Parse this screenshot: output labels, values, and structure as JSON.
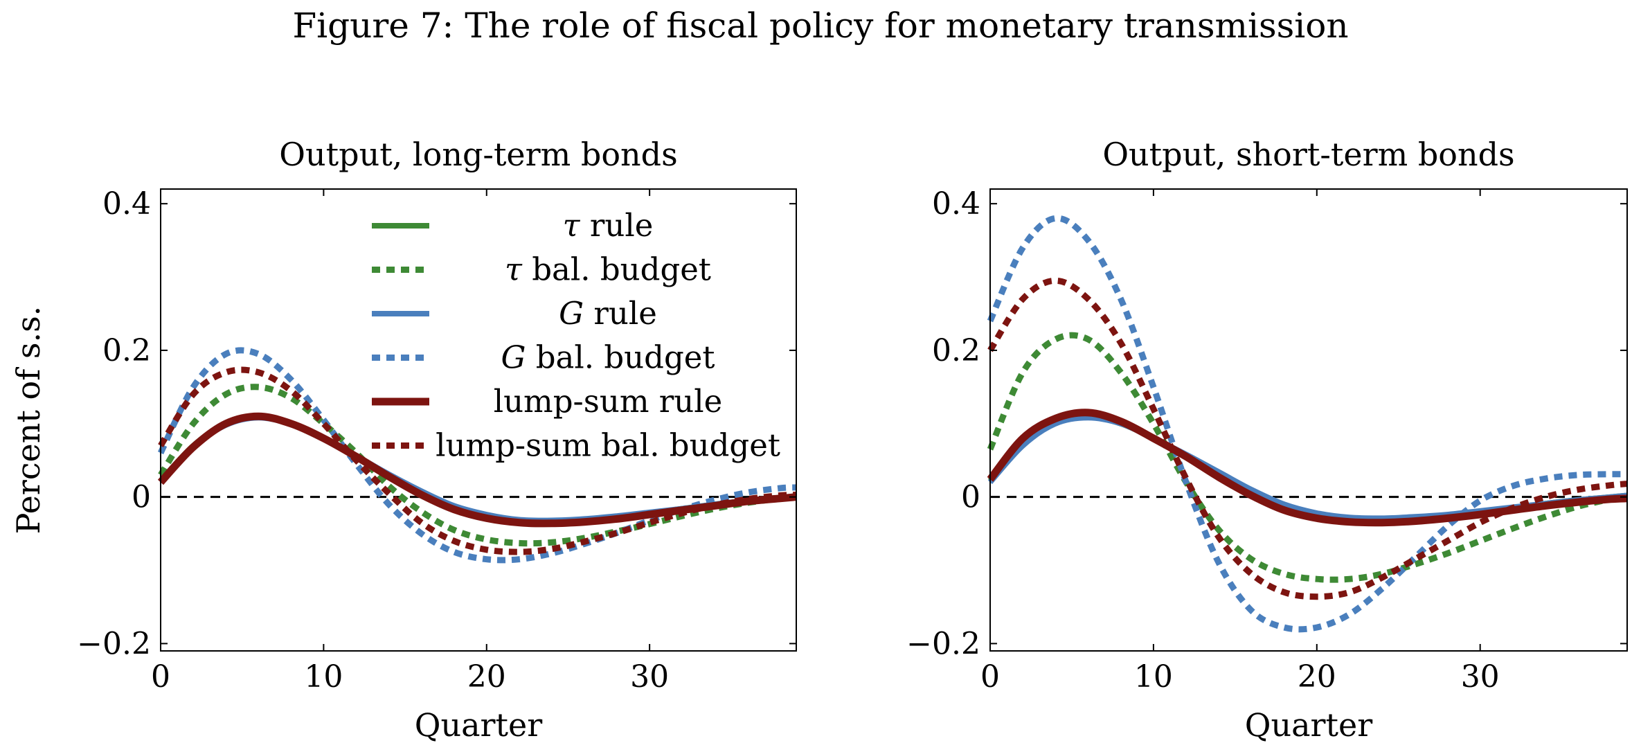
{
  "figure_title": "Figure 7: The role of fiscal policy for monetary transmission",
  "colors": {
    "green": "#3e8a35",
    "blue": "#4a7fbd",
    "red": "#7d1410",
    "zero_line": "#000000"
  },
  "chart_data": [
    {
      "type": "line",
      "title": "Output, long-term bonds",
      "xlabel": "Quarter",
      "ylabel": "Percent of s.s.",
      "xlim": [
        0,
        39
      ],
      "ylim": [
        -0.21,
        0.42
      ],
      "xticks": [
        0,
        10,
        20,
        30
      ],
      "xtick_labels": [
        "0",
        "10",
        "20",
        "30"
      ],
      "yticks": [
        -0.2,
        0,
        0.2,
        0.4
      ],
      "ytick_labels": [
        "−0.2",
        "0",
        "0.2",
        "0.4"
      ],
      "grid": false,
      "legend": "top-center",
      "series": [
        {
          "name": "τ rule",
          "color": "#3e8a35",
          "style": "solid",
          "x": [
            0,
            2,
            4,
            6,
            8,
            10,
            12,
            14,
            16,
            18,
            20,
            22,
            24,
            26,
            28,
            30,
            32,
            34,
            36,
            38,
            39
          ],
          "values": [
            0.022,
            0.07,
            0.1,
            0.11,
            0.1,
            0.08,
            0.055,
            0.03,
            0.005,
            -0.015,
            -0.026,
            -0.032,
            -0.033,
            -0.031,
            -0.027,
            -0.022,
            -0.016,
            -0.01,
            -0.005,
            -0.001,
            0.0
          ]
        },
        {
          "name": "τ bal. budget",
          "color": "#3e8a35",
          "style": "dashed",
          "x": [
            0,
            2,
            4,
            6,
            8,
            10,
            12,
            14,
            16,
            18,
            20,
            22,
            24,
            26,
            28,
            30,
            32,
            34,
            36,
            38,
            39
          ],
          "values": [
            0.03,
            0.1,
            0.14,
            0.15,
            0.135,
            0.1,
            0.06,
            0.015,
            -0.02,
            -0.045,
            -0.058,
            -0.063,
            -0.062,
            -0.056,
            -0.047,
            -0.037,
            -0.026,
            -0.016,
            -0.008,
            -0.002,
            0.0
          ]
        },
        {
          "name": "G rule",
          "color": "#4a7fbd",
          "style": "solid",
          "x": [
            0,
            2,
            4,
            6,
            8,
            10,
            12,
            14,
            16,
            18,
            20,
            22,
            24,
            26,
            28,
            30,
            32,
            34,
            36,
            38,
            39
          ],
          "values": [
            0.02,
            0.068,
            0.098,
            0.108,
            0.099,
            0.08,
            0.056,
            0.031,
            0.008,
            -0.012,
            -0.024,
            -0.031,
            -0.032,
            -0.03,
            -0.026,
            -0.021,
            -0.016,
            -0.01,
            -0.005,
            -0.001,
            0.001
          ]
        },
        {
          "name": "G bal. budget",
          "color": "#4a7fbd",
          "style": "dashed",
          "x": [
            0,
            2,
            4,
            6,
            8,
            10,
            12,
            14,
            16,
            18,
            20,
            22,
            24,
            26,
            28,
            30,
            32,
            34,
            36,
            38,
            39
          ],
          "values": [
            0.06,
            0.15,
            0.195,
            0.195,
            0.16,
            0.105,
            0.045,
            -0.01,
            -0.05,
            -0.075,
            -0.085,
            -0.085,
            -0.077,
            -0.064,
            -0.049,
            -0.032,
            -0.017,
            -0.004,
            0.006,
            0.012,
            0.013
          ]
        },
        {
          "name": "lump-sum rule",
          "color": "#7d1410",
          "style": "solid",
          "x": [
            0,
            2,
            4,
            6,
            8,
            10,
            12,
            14,
            16,
            18,
            20,
            22,
            24,
            26,
            28,
            30,
            32,
            34,
            36,
            38,
            39
          ],
          "values": [
            0.02,
            0.068,
            0.1,
            0.11,
            0.1,
            0.08,
            0.055,
            0.028,
            0.003,
            -0.017,
            -0.029,
            -0.035,
            -0.036,
            -0.034,
            -0.03,
            -0.024,
            -0.018,
            -0.012,
            -0.006,
            -0.002,
            0.0
          ]
        },
        {
          "name": "lump-sum bal. budget",
          "color": "#7d1410",
          "style": "dashed",
          "x": [
            0,
            2,
            4,
            6,
            8,
            10,
            12,
            14,
            16,
            18,
            20,
            22,
            24,
            26,
            28,
            30,
            32,
            34,
            36,
            38,
            39
          ],
          "values": [
            0.07,
            0.14,
            0.17,
            0.17,
            0.145,
            0.1,
            0.05,
            0.005,
            -0.035,
            -0.06,
            -0.072,
            -0.075,
            -0.071,
            -0.061,
            -0.049,
            -0.035,
            -0.022,
            -0.011,
            -0.003,
            0.002,
            0.003
          ]
        }
      ]
    },
    {
      "type": "line",
      "title": "Output, short-term bonds",
      "xlabel": "Quarter",
      "xlim": [
        0,
        39
      ],
      "ylim": [
        -0.21,
        0.42
      ],
      "xticks": [
        0,
        10,
        20,
        30
      ],
      "xtick_labels": [
        "0",
        "10",
        "20",
        "30"
      ],
      "yticks": [
        -0.2,
        0,
        0.2,
        0.4
      ],
      "ytick_labels": [
        "−0.2",
        "0",
        "0.2",
        "0.4"
      ],
      "grid": false,
      "series": [
        {
          "name": "τ rule",
          "color": "#3e8a35",
          "style": "solid",
          "x": [
            0,
            2,
            4,
            6,
            8,
            10,
            12,
            14,
            16,
            18,
            20,
            22,
            24,
            26,
            28,
            30,
            32,
            34,
            36,
            38,
            39
          ],
          "values": [
            0.022,
            0.075,
            0.103,
            0.11,
            0.1,
            0.08,
            0.055,
            0.03,
            0.006,
            -0.014,
            -0.025,
            -0.03,
            -0.031,
            -0.029,
            -0.025,
            -0.02,
            -0.015,
            -0.009,
            -0.004,
            0.0,
            0.002
          ]
        },
        {
          "name": "τ bal. budget",
          "color": "#3e8a35",
          "style": "dashed",
          "x": [
            0,
            2,
            4,
            6,
            8,
            10,
            12,
            14,
            16,
            18,
            20,
            22,
            24,
            26,
            28,
            30,
            32,
            34,
            36,
            38,
            39
          ],
          "values": [
            0.065,
            0.17,
            0.215,
            0.215,
            0.17,
            0.1,
            0.02,
            -0.045,
            -0.085,
            -0.105,
            -0.112,
            -0.112,
            -0.105,
            -0.092,
            -0.077,
            -0.06,
            -0.043,
            -0.027,
            -0.013,
            -0.003,
            0.0
          ]
        },
        {
          "name": "G rule",
          "color": "#4a7fbd",
          "style": "solid",
          "x": [
            0,
            2,
            4,
            6,
            8,
            10,
            12,
            14,
            16,
            18,
            20,
            22,
            24,
            26,
            28,
            30,
            32,
            34,
            36,
            38,
            39
          ],
          "values": [
            0.02,
            0.07,
            0.1,
            0.108,
            0.1,
            0.08,
            0.058,
            0.034,
            0.01,
            -0.01,
            -0.022,
            -0.028,
            -0.029,
            -0.027,
            -0.024,
            -0.019,
            -0.014,
            -0.009,
            -0.004,
            0.0,
            0.002
          ]
        },
        {
          "name": "G bal. budget",
          "color": "#4a7fbd",
          "style": "dashed",
          "x": [
            0,
            2,
            4,
            6,
            8,
            10,
            12,
            14,
            16,
            18,
            20,
            22,
            24,
            26,
            28,
            30,
            32,
            34,
            36,
            38,
            39
          ],
          "values": [
            0.24,
            0.34,
            0.38,
            0.35,
            0.27,
            0.15,
            0.02,
            -0.09,
            -0.155,
            -0.178,
            -0.178,
            -0.16,
            -0.125,
            -0.083,
            -0.04,
            -0.005,
            0.015,
            0.025,
            0.03,
            0.031,
            0.031
          ]
        },
        {
          "name": "lump-sum rule",
          "color": "#7d1410",
          "style": "solid",
          "x": [
            0,
            2,
            4,
            6,
            8,
            10,
            12,
            14,
            16,
            18,
            20,
            22,
            24,
            26,
            28,
            30,
            32,
            34,
            36,
            38,
            39
          ],
          "values": [
            0.024,
            0.08,
            0.107,
            0.115,
            0.103,
            0.08,
            0.055,
            0.027,
            0.002,
            -0.018,
            -0.029,
            -0.034,
            -0.035,
            -0.033,
            -0.029,
            -0.024,
            -0.018,
            -0.012,
            -0.007,
            -0.003,
            -0.002
          ]
        },
        {
          "name": "lump-sum bal. budget",
          "color": "#7d1410",
          "style": "dashed",
          "x": [
            0,
            2,
            4,
            6,
            8,
            10,
            12,
            14,
            16,
            18,
            20,
            22,
            24,
            26,
            28,
            30,
            32,
            34,
            36,
            38,
            39
          ],
          "values": [
            0.2,
            0.27,
            0.295,
            0.27,
            0.21,
            0.12,
            0.025,
            -0.055,
            -0.105,
            -0.13,
            -0.136,
            -0.13,
            -0.11,
            -0.085,
            -0.06,
            -0.035,
            -0.015,
            0.0,
            0.01,
            0.016,
            0.018
          ]
        }
      ]
    }
  ]
}
